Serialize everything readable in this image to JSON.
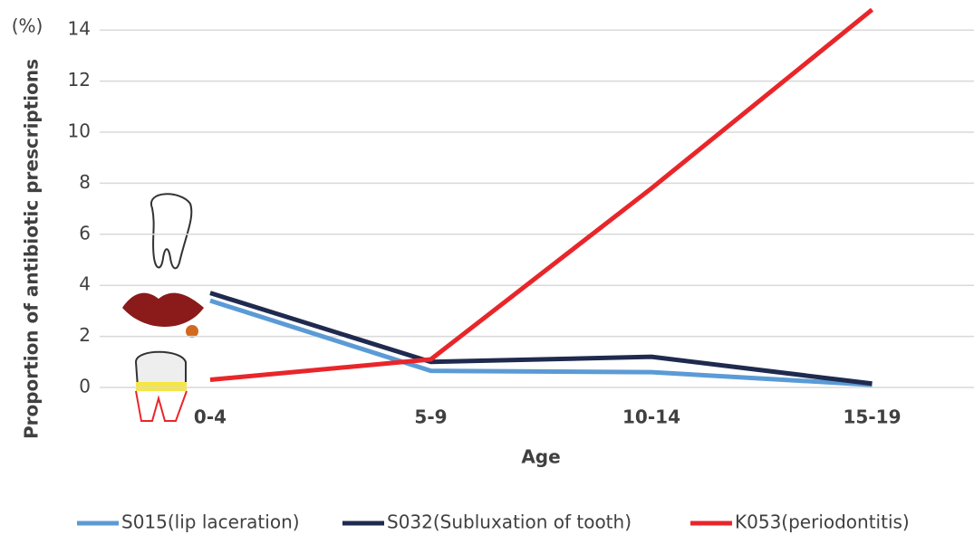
{
  "chart_data": {
    "type": "line",
    "y_label": "Proportion of antibiotic prescriptions",
    "y_unit": "(%)",
    "x_label": "Age",
    "categories": [
      "0-4",
      "5-9",
      "10-14",
      "15-19"
    ],
    "series": [
      {
        "name": "S015(lip laceration)",
        "color": "#5b9bd5",
        "values": [
          3.4,
          0.65,
          0.6,
          0.1
        ]
      },
      {
        "name": "S032(Subluxation of tooth)",
        "color": "#1f2a4f",
        "values": [
          3.7,
          1.0,
          1.2,
          0.15
        ]
      },
      {
        "name": "K053(periodontitis)",
        "color": "#e8262a",
        "values": [
          0.3,
          1.1,
          7.8,
          14.8
        ]
      }
    ],
    "ylim": [
      0,
      15
    ],
    "yticks": [
      0,
      2,
      4,
      6,
      8,
      10,
      12,
      14
    ],
    "grid": true,
    "legend": "bottom"
  }
}
